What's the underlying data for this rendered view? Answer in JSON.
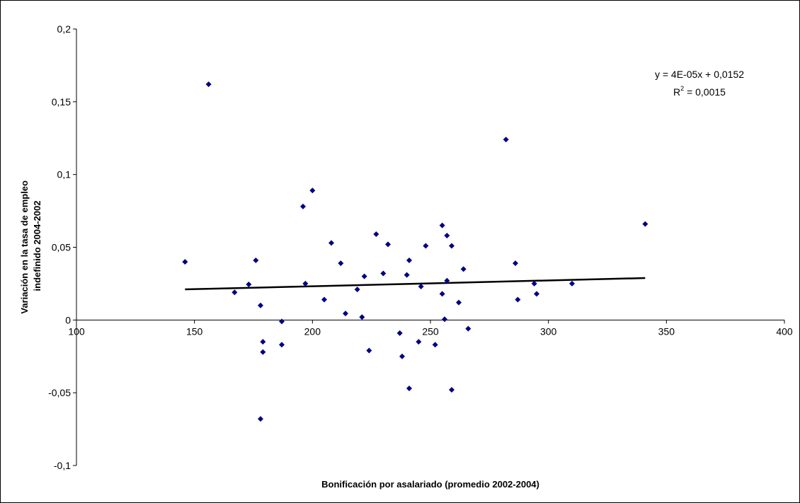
{
  "chart_data": {
    "type": "scatter",
    "title": "",
    "xlabel": "Bonificación por asalariado (promedio 2002-2004)",
    "ylabel_lines": [
      "Variación en la tasa de empleo",
      "indefinido 2004-2002"
    ],
    "xlim": [
      100,
      400
    ],
    "ylim": [
      -0.1,
      0.2
    ],
    "x_ticks": [
      "100",
      "150",
      "200",
      "250",
      "300",
      "350",
      "400"
    ],
    "y_ticks": [
      "-0,1",
      "-0,05",
      "0",
      "0,05",
      "0,1",
      "0,15",
      "0,2"
    ],
    "x_axis_crosses_y_at": 0,
    "grid": false,
    "marker_color": "#000080",
    "series": [
      {
        "x": [
          146,
          156,
          167,
          173,
          176,
          178,
          178,
          179,
          179,
          187,
          187,
          196,
          197,
          200,
          205,
          208,
          212,
          214,
          219,
          221,
          222,
          224,
          227,
          230,
          232,
          237,
          238,
          240,
          241,
          241,
          245,
          246,
          248,
          252,
          255,
          255,
          256,
          257,
          257,
          259,
          259,
          262,
          264,
          266,
          282,
          286,
          287,
          294,
          295,
          310,
          341
        ],
        "y": [
          0.04,
          0.162,
          0.019,
          0.0245,
          0.041,
          -0.068,
          0.01,
          -0.022,
          -0.015,
          -0.001,
          -0.017,
          0.078,
          0.025,
          0.089,
          0.014,
          0.053,
          0.039,
          0.0045,
          0.021,
          0.002,
          0.03,
          -0.021,
          0.059,
          0.032,
          0.052,
          -0.009,
          -0.025,
          0.031,
          0.041,
          -0.047,
          -0.015,
          0.023,
          0.051,
          -0.017,
          0.065,
          0.018,
          0.0005,
          0.058,
          0.027,
          0.051,
          -0.048,
          0.012,
          0.035,
          -0.006,
          0.124,
          0.039,
          0.014,
          0.025,
          0.018,
          0.025,
          0.066
        ]
      }
    ],
    "trendline": {
      "slope": 4e-05,
      "intercept": 0.0152,
      "x_range": [
        146,
        341
      ],
      "color": "#000000",
      "equation": "y = 4E-05x + 0,0152",
      "r2_prefix": "R",
      "r2_exponent": "2",
      "r2_suffix": " = 0,0015"
    }
  }
}
